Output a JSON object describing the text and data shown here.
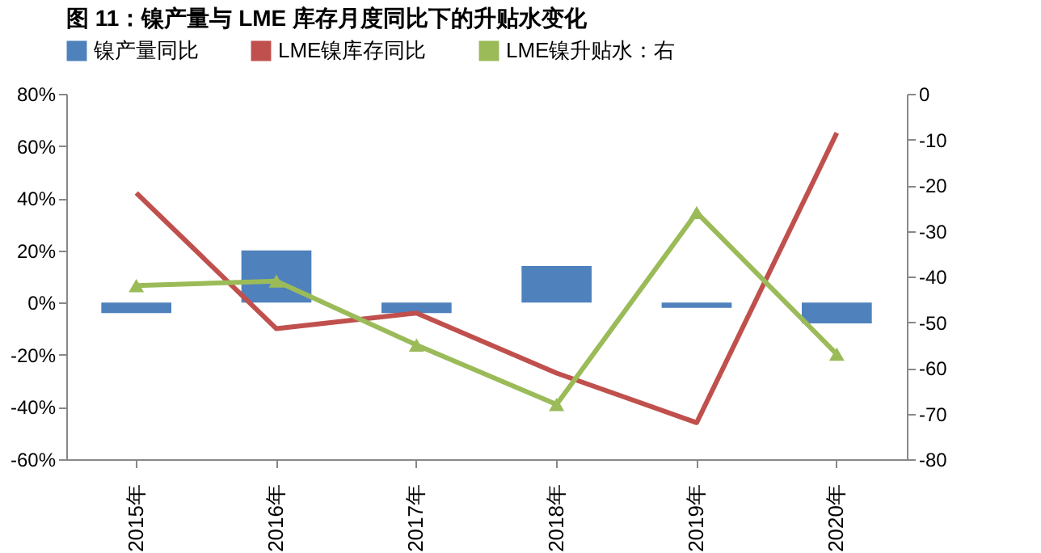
{
  "chart_data": {
    "type": "bar",
    "title": "图 11：镍产量与 LME 库存月度同比下的升贴水变化",
    "categories": [
      "2015年",
      "2016年",
      "2017年",
      "2018年",
      "2019年",
      "2020年"
    ],
    "series": [
      {
        "name": "镍产量同比",
        "color": "#4f81bd",
        "values": [
          -4,
          20,
          -4,
          14,
          -2,
          -8
        ]
      },
      {
        "name": "LME镍库存同比",
        "type": "line",
        "color": "#c0504d",
        "marker": "none",
        "values": [
          42,
          -10,
          -4,
          -27,
          -46,
          65
        ]
      },
      {
        "name": "LME镍升贴水：右",
        "type": "line",
        "axis": "y2",
        "color": "#9bbb59",
        "marker": "triangle",
        "values": [
          -42,
          -41,
          -55,
          -68,
          -26,
          -57
        ]
      }
    ],
    "ylim": [
      -60,
      80
    ],
    "yticks": [
      {
        "value": -60,
        "label": "-60%"
      },
      {
        "value": -40,
        "label": "-40%"
      },
      {
        "value": -20,
        "label": "-20%"
      },
      {
        "value": 0,
        "label": "0%"
      },
      {
        "value": 20,
        "label": "20%"
      },
      {
        "value": 40,
        "label": "40%"
      },
      {
        "value": 60,
        "label": "60%"
      },
      {
        "value": 80,
        "label": "80%"
      }
    ],
    "y2lim": [
      -80,
      0
    ],
    "y2ticks": [
      -80,
      -70,
      -60,
      -50,
      -40,
      -30,
      -20,
      -10,
      0
    ],
    "legend": "top",
    "grid": false
  }
}
